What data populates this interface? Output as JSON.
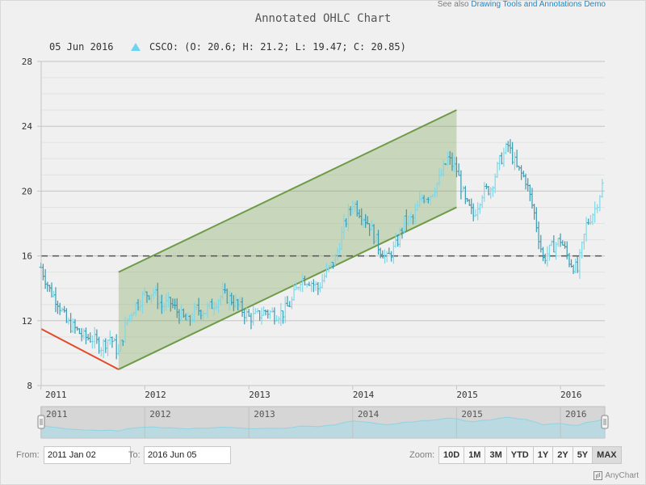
{
  "header": {
    "see_also_text": "See also",
    "see_also_link": "Drawing Tools and Annotations Demo",
    "title": "Annotated OHLC Chart"
  },
  "legend": {
    "date": "05 Jun 2016",
    "series_text": "CSCO: (O: 20.6; H: 21.2; L: 19.47; C: 20.85)",
    "marker_color": "#6fd3ef"
  },
  "chart_data": {
    "type": "ohlc",
    "series": [
      {
        "name": "CSCO",
        "ticker": "CSCO"
      }
    ],
    "x_range": [
      "2011-01-02",
      "2016-06-05"
    ],
    "ylim": [
      8,
      28
    ],
    "y_ticks": [
      "8",
      "12",
      "16",
      "20",
      "24",
      "28"
    ],
    "x_ticks": [
      "2011",
      "2012",
      "2013",
      "2014",
      "2015",
      "2016"
    ],
    "grid": true,
    "last_point": {
      "date": "05 Jun 2016",
      "open": 20.6,
      "high": 21.2,
      "low": 19.47,
      "close": 20.85
    },
    "monthly_close": [
      {
        "date": "2011-01",
        "value": 15.3
      },
      {
        "date": "2011-02",
        "value": 13.9
      },
      {
        "date": "2011-03",
        "value": 13.2
      },
      {
        "date": "2011-04",
        "value": 11.9
      },
      {
        "date": "2011-05",
        "value": 11.5
      },
      {
        "date": "2011-06",
        "value": 11.0
      },
      {
        "date": "2011-07",
        "value": 10.9
      },
      {
        "date": "2011-08",
        "value": 10.4
      },
      {
        "date": "2011-09",
        "value": 11.0
      },
      {
        "date": "2011-10",
        "value": 10.0
      },
      {
        "date": "2011-11",
        "value": 12.1
      },
      {
        "date": "2011-12",
        "value": 13.0
      },
      {
        "date": "2012-01",
        "value": 13.6
      },
      {
        "date": "2012-02",
        "value": 13.8
      },
      {
        "date": "2012-03",
        "value": 12.9
      },
      {
        "date": "2012-04",
        "value": 13.1
      },
      {
        "date": "2012-05",
        "value": 12.4
      },
      {
        "date": "2012-06",
        "value": 11.9
      },
      {
        "date": "2012-07",
        "value": 12.7
      },
      {
        "date": "2012-08",
        "value": 12.6
      },
      {
        "date": "2012-09",
        "value": 13.1
      },
      {
        "date": "2012-10",
        "value": 13.6
      },
      {
        "date": "2012-11",
        "value": 13.3
      },
      {
        "date": "2012-12",
        "value": 12.8
      },
      {
        "date": "2013-01",
        "value": 12.2
      },
      {
        "date": "2013-02",
        "value": 12.3
      },
      {
        "date": "2013-03",
        "value": 12.6
      },
      {
        "date": "2013-04",
        "value": 12.4
      },
      {
        "date": "2013-05",
        "value": 12.5
      },
      {
        "date": "2013-06",
        "value": 13.2
      },
      {
        "date": "2013-07",
        "value": 14.6
      },
      {
        "date": "2013-08",
        "value": 14.5
      },
      {
        "date": "2013-09",
        "value": 14.0
      },
      {
        "date": "2013-10",
        "value": 15.0
      },
      {
        "date": "2013-11",
        "value": 15.8
      },
      {
        "date": "2013-12",
        "value": 17.8
      },
      {
        "date": "2014-01",
        "value": 19.3
      },
      {
        "date": "2014-02",
        "value": 18.6
      },
      {
        "date": "2014-03",
        "value": 17.9
      },
      {
        "date": "2014-04",
        "value": 16.6
      },
      {
        "date": "2014-05",
        "value": 15.8
      },
      {
        "date": "2014-06",
        "value": 16.6
      },
      {
        "date": "2014-07",
        "value": 18.1
      },
      {
        "date": "2014-08",
        "value": 18.3
      },
      {
        "date": "2014-09",
        "value": 19.6
      },
      {
        "date": "2014-10",
        "value": 19.8
      },
      {
        "date": "2014-11",
        "value": 20.7
      },
      {
        "date": "2014-12",
        "value": 22.0
      },
      {
        "date": "2015-01",
        "value": 21.3
      },
      {
        "date": "2015-02",
        "value": 19.3
      },
      {
        "date": "2015-03",
        "value": 18.5
      },
      {
        "date": "2015-04",
        "value": 19.9
      },
      {
        "date": "2015-05",
        "value": 20.2
      },
      {
        "date": "2015-06",
        "value": 21.8
      },
      {
        "date": "2015-07",
        "value": 22.8
      },
      {
        "date": "2015-08",
        "value": 21.4
      },
      {
        "date": "2015-09",
        "value": 20.7
      },
      {
        "date": "2015-10",
        "value": 18.6
      },
      {
        "date": "2015-11",
        "value": 15.8
      },
      {
        "date": "2015-12",
        "value": 16.5
      },
      {
        "date": "2016-01",
        "value": 17.0
      },
      {
        "date": "2016-02",
        "value": 15.7
      },
      {
        "date": "2016-03",
        "value": 15.1
      },
      {
        "date": "2016-04",
        "value": 17.9
      },
      {
        "date": "2016-05",
        "value": 18.9
      },
      {
        "date": "2016-06",
        "value": 20.85
      }
    ],
    "annotations": [
      {
        "type": "line",
        "color": "#e24b2a",
        "from": {
          "date": "2011-01-02",
          "value": 11.5
        },
        "to": {
          "date": "2011-10-01",
          "value": 9.0
        }
      },
      {
        "type": "trend-channel",
        "color": "#6e9b47",
        "fill": "#6e9b47",
        "lower": {
          "from": {
            "date": "2011-10-01",
            "value": 9.0
          },
          "to": {
            "date": "2015-01-01",
            "value": 19.0
          }
        },
        "upper": {
          "from": {
            "date": "2011-10-01",
            "value": 15.0
          },
          "to": {
            "date": "2015-01-01",
            "value": 25.0
          }
        }
      },
      {
        "type": "horizontal-line",
        "value": 16,
        "style": "dashed",
        "color": "#555555"
      }
    ],
    "series_color": "#3a9bb1",
    "series_color_light": "#7fd8e8"
  },
  "scroller": {
    "labels": [
      "2011",
      "2012",
      "2013",
      "2014",
      "2015",
      "2016"
    ]
  },
  "range": {
    "from_label": "From:",
    "from_value": "2011 Jan 02",
    "to_label": "To:",
    "to_value": "2016 Jun 05"
  },
  "zoom": {
    "label": "Zoom:",
    "buttons": [
      "10D",
      "1M",
      "3M",
      "YTD",
      "1Y",
      "2Y",
      "5Y",
      "MAX"
    ],
    "active": "MAX"
  },
  "credits": "AnyChart"
}
